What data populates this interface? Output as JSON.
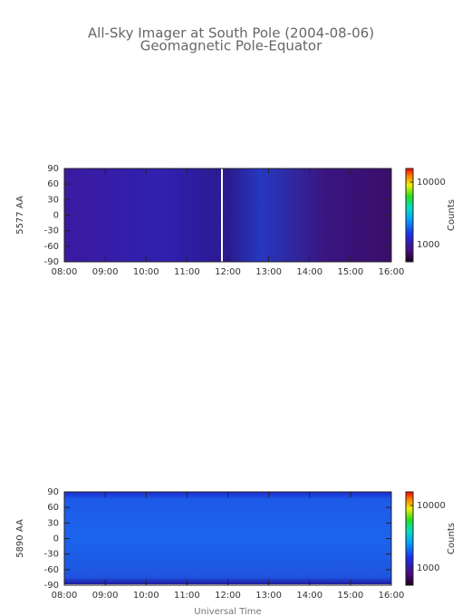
{
  "chart_data": [
    {
      "type": "keogram",
      "title": "All-Sky Imager at South Pole (2004-08-06)",
      "subtitle": "Geomagnetic Pole-Equator",
      "ylabel": "5577 AA",
      "ylim": [
        -90,
        90
      ],
      "yticks": [
        -90,
        -60,
        -30,
        0,
        30,
        60,
        90
      ],
      "xlim": [
        8,
        16
      ],
      "xticks": [
        {
          "value": 8,
          "label": "08:00"
        },
        {
          "value": 9,
          "label": "09:00"
        },
        {
          "value": 10,
          "label": "10:00"
        },
        {
          "value": 11,
          "label": "11:00"
        },
        {
          "value": 12,
          "label": "12:00"
        },
        {
          "value": 13,
          "label": "13:00"
        },
        {
          "value": 14,
          "label": "14:00"
        },
        {
          "value": 15,
          "label": "15:00"
        },
        {
          "value": 16,
          "label": "16:00"
        }
      ],
      "colorbar_label": "Counts",
      "clim": [
        530,
        16500
      ],
      "cticks": [
        1000,
        10000
      ],
      "colorbar_log": true
    },
    {
      "type": "keogram",
      "ylabel": "5890 AA",
      "xlabel": "Universal Time",
      "ylim": [
        -90,
        90
      ],
      "yticks": [
        -90,
        -60,
        -30,
        0,
        30,
        60,
        90
      ],
      "xlim": [
        8,
        16
      ],
      "xticks": [
        {
          "value": 8,
          "label": "08:00"
        },
        {
          "value": 9,
          "label": "09:00"
        },
        {
          "value": 10,
          "label": "10:00"
        },
        {
          "value": 11,
          "label": "11:00"
        },
        {
          "value": 12,
          "label": "12:00"
        },
        {
          "value": 13,
          "label": "13:00"
        },
        {
          "value": 14,
          "label": "14:00"
        },
        {
          "value": 15,
          "label": "15:00"
        },
        {
          "value": 16,
          "label": "16:00"
        }
      ],
      "colorbar_label": "Counts",
      "clim": [
        530,
        16500
      ],
      "cticks": [
        1000,
        10000
      ],
      "colorbar_log": true
    }
  ]
}
